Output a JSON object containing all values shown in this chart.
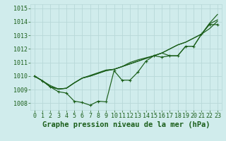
{
  "title": "Graphe pression niveau de la mer (hPa)",
  "bg_color": "#d0ecec",
  "line_color": "#1a5e1a",
  "grid_color": "#b8d8d8",
  "xlim": [
    -0.5,
    23.5
  ],
  "ylim": [
    1007.5,
    1015.3
  ],
  "yticks": [
    1008,
    1009,
    1010,
    1011,
    1012,
    1013,
    1014,
    1015
  ],
  "xticks": [
    0,
    1,
    2,
    3,
    4,
    5,
    6,
    7,
    8,
    9,
    10,
    11,
    12,
    13,
    14,
    15,
    16,
    17,
    18,
    19,
    20,
    21,
    22,
    23
  ],
  "series": [
    [
      1010.0,
      1009.65,
      1009.2,
      1008.85,
      1008.75,
      1008.15,
      1008.05,
      1007.85,
      1008.15,
      1008.1,
      1010.4,
      1009.7,
      1009.7,
      1010.3,
      1011.1,
      1011.5,
      1011.4,
      1011.5,
      1011.5,
      1012.2,
      1012.2,
      1013.1,
      1013.8,
      1013.8
    ],
    [
      1010.0,
      1009.65,
      1009.2,
      1009.05,
      1009.1,
      1009.5,
      1009.85,
      1010.0,
      1010.2,
      1010.4,
      1010.5,
      1010.7,
      1010.9,
      1011.1,
      1011.3,
      1011.5,
      1011.7,
      1012.0,
      1012.3,
      1012.5,
      1012.8,
      1013.1,
      1013.5,
      1014.05
    ],
    [
      1010.0,
      1009.65,
      1009.2,
      1009.05,
      1009.1,
      1009.5,
      1009.85,
      1010.0,
      1010.2,
      1010.4,
      1010.5,
      1010.7,
      1010.9,
      1011.1,
      1011.3,
      1011.5,
      1011.7,
      1012.0,
      1012.3,
      1012.5,
      1012.8,
      1013.1,
      1013.9,
      1014.55
    ],
    [
      1010.0,
      1009.65,
      1009.3,
      1009.05,
      1009.1,
      1009.5,
      1009.85,
      1010.05,
      1010.25,
      1010.45,
      1010.5,
      1010.7,
      1011.0,
      1011.2,
      1011.35,
      1011.5,
      1011.7,
      1011.5,
      1011.5,
      1012.2,
      1012.2,
      1013.1,
      1013.85,
      1014.15
    ]
  ],
  "title_fontsize": 7.5,
  "tick_fontsize": 6.0,
  "ytick_fontsize": 6.0
}
